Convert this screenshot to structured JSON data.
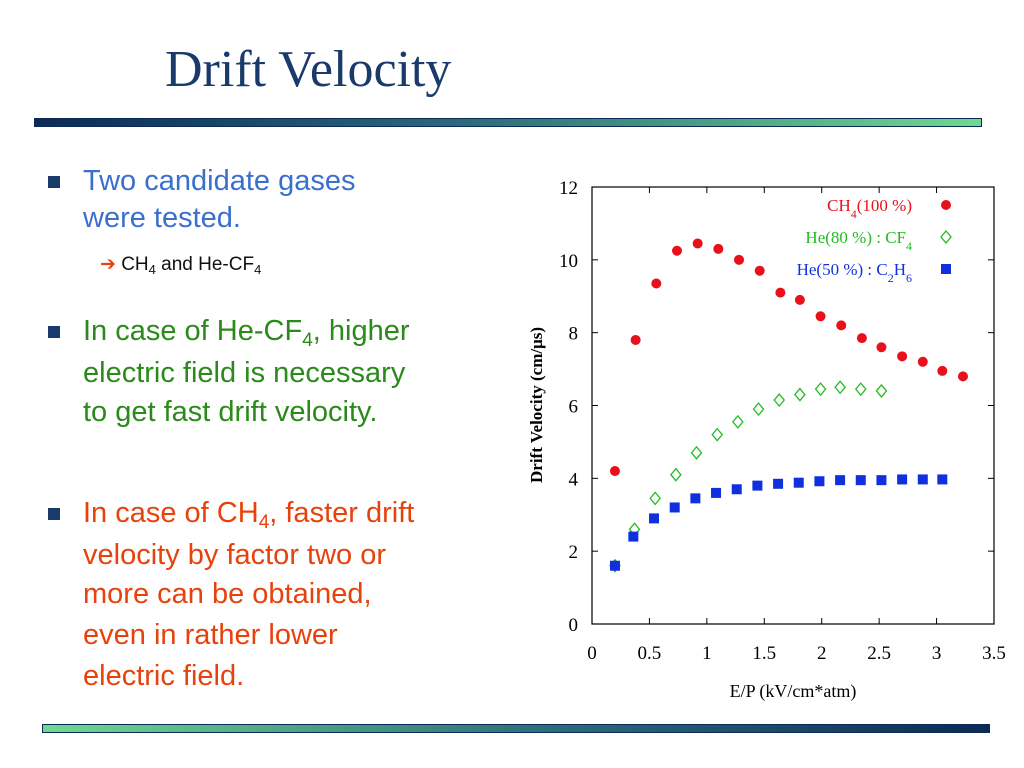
{
  "slide": {
    "title": "Drift Velocity",
    "bullet1": {
      "line1": "Two candidate gases",
      "line2": "were tested."
    },
    "sub_bullet": {
      "a": "CH",
      "a_sub": "4",
      "b": " and He-CF",
      "b_sub": "4"
    },
    "bullet2": {
      "line1_a": "In case of He-CF",
      "line1_sub": "4",
      "line1_b": ", higher",
      "line2": "electric field is necessary",
      "line3": "to get fast drift velocity."
    },
    "bullet3": {
      "line1_a": "In case of CH",
      "line1_sub": "4",
      "line1_b": ", faster drift",
      "line2": "velocity by factor two or",
      "line3": "more can be obtained,",
      "line4": "even in rather lower",
      "line5": "electric field."
    }
  },
  "colors": {
    "title": "#1a3a6b",
    "bullet1": "#3a6fcf",
    "bullet2": "#2a8a1a",
    "bullet3": "#e8420c",
    "series_ch4": "#e8101a",
    "series_hecf4": "#22bb22",
    "series_hec2h6": "#1030e0"
  },
  "icons": {
    "bullet": "square-bullet-icon",
    "arrow": "right-arrow-icon"
  },
  "chart_data": {
    "type": "scatter",
    "xlabel": "E/P (kV/cm*atm)",
    "ylabel": "Drift Velocity (cm/μs)",
    "xlim": [
      0,
      3.5
    ],
    "ylim": [
      0,
      12
    ],
    "xticks": [
      "0",
      "0.5",
      "1",
      "1.5",
      "2",
      "2.5",
      "3",
      "3.5"
    ],
    "yticks": [
      "0",
      "2",
      "4",
      "6",
      "8",
      "10",
      "12"
    ],
    "grid": false,
    "legend_position": "top-right",
    "series": [
      {
        "name": "CH4(100%)",
        "marker": "filled-circle",
        "points": [
          [
            0.2,
            4.2
          ],
          [
            0.38,
            7.8
          ],
          [
            0.56,
            9.35
          ],
          [
            0.74,
            10.25
          ],
          [
            0.92,
            10.45
          ],
          [
            1.1,
            10.3
          ],
          [
            1.28,
            10.0
          ],
          [
            1.46,
            9.7
          ],
          [
            1.64,
            9.1
          ],
          [
            1.81,
            8.9
          ],
          [
            1.99,
            8.45
          ],
          [
            2.17,
            8.2
          ],
          [
            2.35,
            7.85
          ],
          [
            2.52,
            7.6
          ],
          [
            2.7,
            7.35
          ],
          [
            2.88,
            7.2
          ],
          [
            3.05,
            6.95
          ],
          [
            3.23,
            6.8
          ]
        ]
      },
      {
        "name": "He(80%) : CF4",
        "marker": "open-diamond",
        "points": [
          [
            0.2,
            1.6
          ],
          [
            0.37,
            2.6
          ],
          [
            0.55,
            3.45
          ],
          [
            0.73,
            4.1
          ],
          [
            0.91,
            4.7
          ],
          [
            1.09,
            5.2
          ],
          [
            1.27,
            5.55
          ],
          [
            1.45,
            5.9
          ],
          [
            1.63,
            6.15
          ],
          [
            1.81,
            6.3
          ],
          [
            1.99,
            6.45
          ],
          [
            2.16,
            6.5
          ],
          [
            2.34,
            6.45
          ],
          [
            2.52,
            6.4
          ]
        ]
      },
      {
        "name": "He(50%) : C2H6",
        "marker": "filled-square",
        "points": [
          [
            0.2,
            1.6
          ],
          [
            0.36,
            2.4
          ],
          [
            0.54,
            2.9
          ],
          [
            0.72,
            3.2
          ],
          [
            0.9,
            3.45
          ],
          [
            1.08,
            3.6
          ],
          [
            1.26,
            3.7
          ],
          [
            1.44,
            3.8
          ],
          [
            1.62,
            3.85
          ],
          [
            1.8,
            3.88
          ],
          [
            1.98,
            3.92
          ],
          [
            2.16,
            3.95
          ],
          [
            2.34,
            3.95
          ],
          [
            2.52,
            3.95
          ],
          [
            2.7,
            3.97
          ],
          [
            2.88,
            3.97
          ],
          [
            3.05,
            3.97
          ]
        ]
      }
    ],
    "legend_labels": [
      {
        "base": "CH",
        "sub": "4",
        "rest": "(100 %)"
      },
      {
        "base": "He(80 %) : CF",
        "sub": "4",
        "rest": ""
      },
      {
        "base": "He(50 %) : C",
        "sub": "2",
        "mid": "H",
        "sub2": "6"
      }
    ]
  }
}
